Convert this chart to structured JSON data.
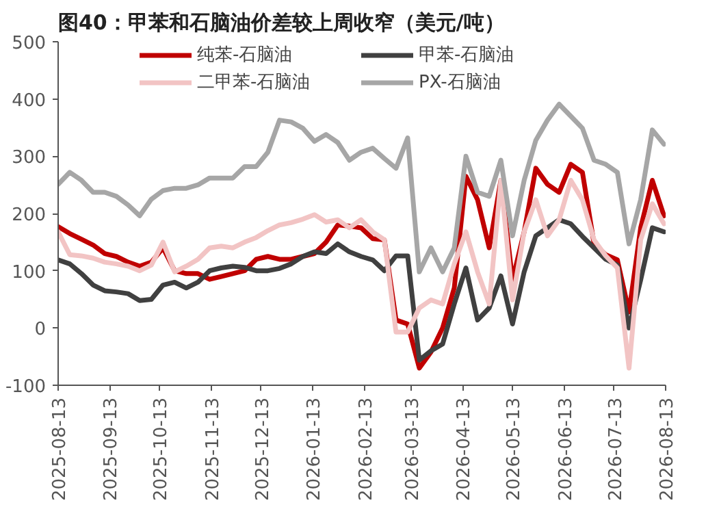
{
  "chart_data": {
    "type": "line",
    "title": "图40：甲苯和石脑油价差较上周收窄（美元/吨）",
    "x": [
      "2025-08-13",
      "2025-08-20",
      "2025-08-27",
      "2025-09-03",
      "2025-09-10",
      "2025-09-17",
      "2025-09-24",
      "2025-10-01",
      "2025-10-08",
      "2025-10-15",
      "2025-10-22",
      "2025-10-29",
      "2025-11-05",
      "2025-11-12",
      "2025-11-19",
      "2025-11-26",
      "2025-12-03",
      "2025-12-10",
      "2025-12-17",
      "2025-12-24",
      "2025-12-31",
      "2026-01-07",
      "2026-01-14",
      "2026-01-21",
      "2026-01-28",
      "2026-02-04",
      "2026-02-11",
      "2026-02-18",
      "2026-02-25",
      "2026-03-04",
      "2026-03-11",
      "2026-03-18",
      "2026-03-25",
      "2026-04-01",
      "2026-04-08",
      "2026-04-15",
      "2026-04-22",
      "2026-04-29",
      "2026-05-06",
      "2026-05-13",
      "2026-05-20",
      "2026-05-27",
      "2026-06-03",
      "2026-06-10",
      "2026-06-17",
      "2026-06-24",
      "2026-07-01",
      "2026-07-08",
      "2026-07-15",
      "2026-07-22",
      "2026-07-29",
      "2026-08-05",
      "2026-08-12"
    ],
    "series": [
      {
        "name": "纯苯-石脑油",
        "color": "#c00000",
        "values": [
          177,
          165,
          155,
          145,
          130,
          125,
          115,
          108,
          115,
          140,
          100,
          95,
          95,
          85,
          90,
          95,
          100,
          120,
          125,
          120,
          120,
          125,
          130,
          150,
          180,
          178,
          175,
          156,
          154,
          14,
          7,
          -70,
          -42,
          0,
          70,
          265,
          224,
          140,
          258,
          84,
          168,
          279,
          251,
          237,
          286,
          272,
          147,
          128,
          119,
          28,
          175,
          258,
          196
        ]
      },
      {
        "name": "甲苯-石脑油",
        "color": "#404040",
        "values": [
          119,
          112,
          95,
          75,
          65,
          63,
          60,
          48,
          50,
          75,
          80,
          70,
          80,
          100,
          105,
          108,
          106,
          100,
          100,
          104,
          112,
          125,
          133,
          130,
          147,
          133,
          125,
          119,
          100,
          126,
          126,
          -56,
          -40,
          -28,
          42,
          105,
          14,
          35,
          91,
          7,
          98,
          161,
          175,
          189,
          182,
          160,
          140,
          120,
          110,
          0,
          84,
          175,
          168
        ]
      },
      {
        "name": "二甲苯-石脑油",
        "color": "#f2c4c4",
        "values": [
          168,
          128,
          126,
          122,
          115,
          112,
          108,
          100,
          110,
          150,
          98,
          108,
          120,
          140,
          143,
          140,
          150,
          158,
          170,
          180,
          184,
          190,
          198,
          185,
          189,
          175,
          189,
          168,
          154,
          -7,
          -7,
          35,
          49,
          42,
          112,
          168,
          98,
          42,
          258,
          49,
          168,
          224,
          161,
          189,
          258,
          224,
          154,
          126,
          105,
          -70,
          154,
          217,
          182
        ]
      },
      {
        "name": "PX-石脑油",
        "color": "#a6a6a6",
        "values": [
          251,
          272,
          258,
          237,
          237,
          230,
          215,
          196,
          225,
          240,
          244,
          244,
          250,
          262,
          262,
          262,
          282,
          282,
          307,
          363,
          360,
          349,
          326,
          338,
          324,
          293,
          307,
          314,
          296,
          279,
          332,
          98,
          140,
          98,
          140,
          300,
          237,
          230,
          293,
          161,
          258,
          328,
          363,
          391,
          370,
          349,
          293,
          286,
          272,
          147,
          224,
          346,
          321
        ]
      }
    ],
    "xlim": [
      "2025-08-13",
      "2026-08-13"
    ],
    "xticks": [
      "2025-08-13",
      "2025-09-13",
      "2025-10-13",
      "2025-11-13",
      "2025-12-13",
      "2026-01-13",
      "2026-02-13",
      "2026-03-13",
      "2026-04-13",
      "2026-05-13",
      "2026-06-13",
      "2026-07-13",
      "2026-08-13"
    ],
    "ylim": [
      -100,
      500
    ],
    "yticks": [
      -100,
      0,
      100,
      200,
      300,
      400,
      500
    ],
    "legend": "top",
    "grid": false,
    "line_style": "solid",
    "marker": "none"
  }
}
